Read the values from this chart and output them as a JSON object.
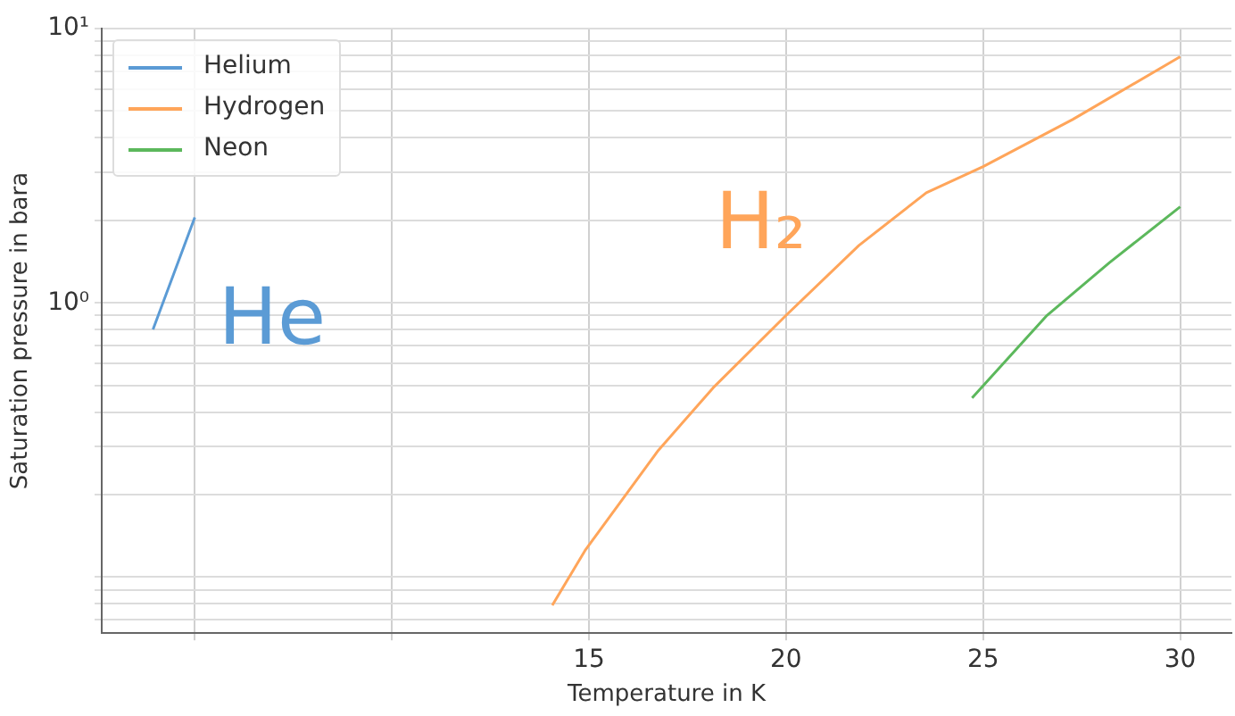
{
  "chart_data": {
    "type": "line",
    "xlabel": "Temperature in K",
    "ylabel": "Saturation pressure in bara",
    "log": "y",
    "grid": true,
    "legend": "top left",
    "marker": "none",
    "line_style": "solid",
    "xlim": [
      2.64,
      31.3
    ],
    "xticks": [
      {
        "value": 5,
        "label": null
      },
      {
        "value": 10,
        "label": null
      },
      15,
      20,
      25,
      30
    ],
    "ylim": [
      0.0625,
      10
    ],
    "yticks": [
      {
        "value": 1,
        "label": "10⁰"
      },
      {
        "value": 10,
        "label": "10¹"
      }
    ],
    "series": [
      {
        "name": "Helium",
        "color": "#5b9bd5",
        "x": [
          3.94,
          4.47,
          5.0
        ],
        "values": [
          0.8,
          1.28,
          2.05
        ]
      },
      {
        "name": "Hydrogen",
        "color": "#ffa55a",
        "x": [
          14.07,
          14.9,
          16.76,
          18.15,
          20,
          21.85,
          23.56,
          25,
          27.27,
          30
        ],
        "values": [
          0.079,
          0.125,
          0.29,
          0.49,
          0.9,
          1.62,
          2.52,
          3.14,
          4.66,
          7.9
        ]
      },
      {
        "name": "Neon",
        "color": "#5cb85c",
        "x": [
          24.72,
          26.62,
          28.2,
          30
        ],
        "values": [
          0.45,
          0.9,
          1.4,
          2.24
        ]
      }
    ],
    "annotations": [
      "He",
      "H₂"
    ]
  }
}
